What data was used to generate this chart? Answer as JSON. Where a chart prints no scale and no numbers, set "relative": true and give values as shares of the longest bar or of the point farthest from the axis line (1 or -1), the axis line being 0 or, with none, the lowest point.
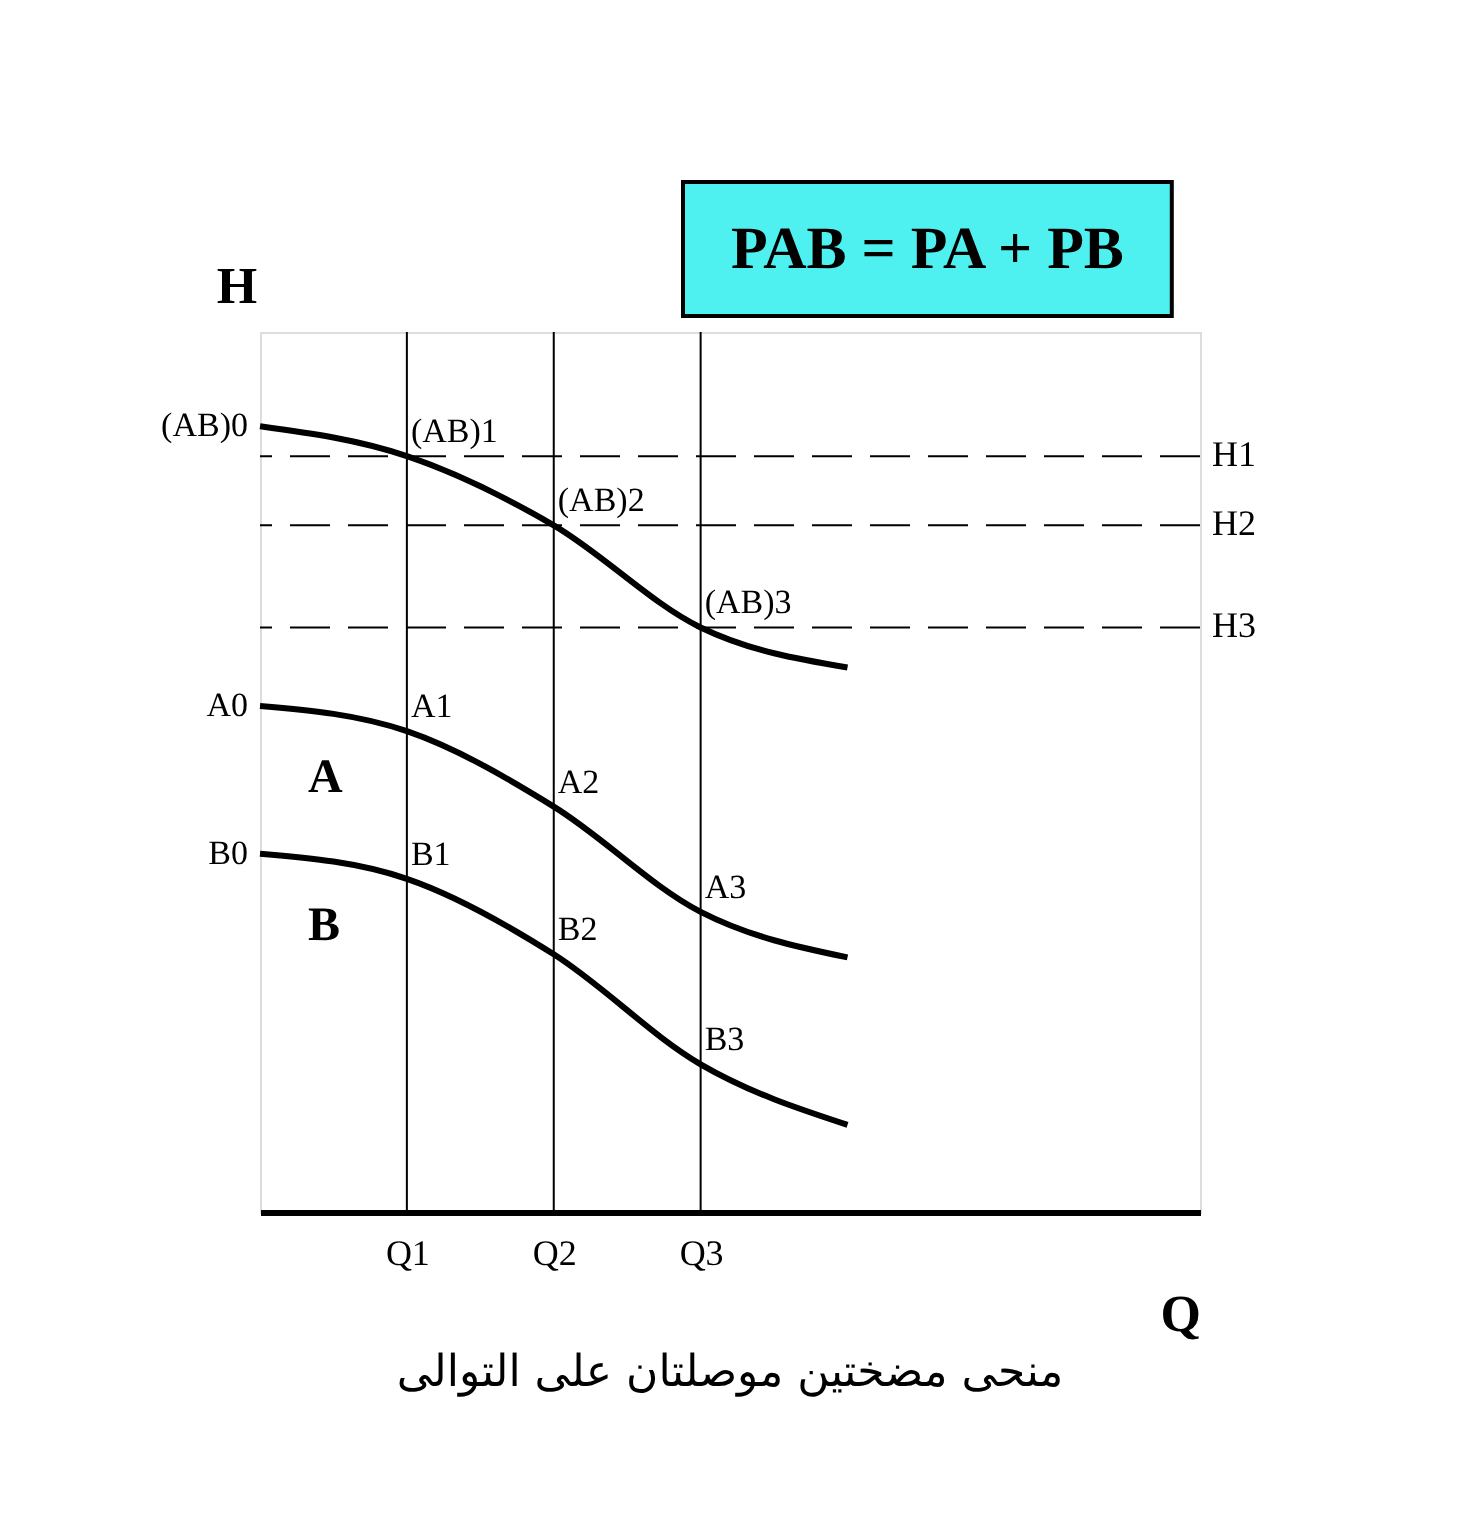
{
  "chart_data": {
    "type": "line",
    "relative": true,
    "title": "منحى مضختين موصلتان على التوالى",
    "xlabel": "Q",
    "ylabel": "H",
    "categories": [
      null,
      "Q1",
      "Q2",
      "Q3",
      null
    ],
    "series": [
      {
        "color": "#000000",
        "values": [
          1,
          0.962,
          0.874,
          0.744,
          0.693
        ]
      },
      {
        "name": "A",
        "color": "#000000",
        "values": [
          0.644,
          0.612,
          0.516,
          0.382,
          0.324
        ]
      },
      {
        "name": "B",
        "color": "#000000",
        "values": [
          0.456,
          0.424,
          0.328,
          0.188,
          0.111
        ]
      }
    ],
    "ref_lines": [
      {
        "axis": "y",
        "value": 0.962,
        "label": "H1",
        "line_style": "dashed"
      },
      {
        "axis": "y",
        "value": 0.874,
        "label": "H2",
        "line_style": "dashed"
      },
      {
        "axis": "y",
        "value": 0.744,
        "label": "H3",
        "line_style": "dashed"
      },
      {
        "axis": "x",
        "value": "Q1",
        "label": null
      },
      {
        "axis": "x",
        "value": "Q2",
        "label": null
      },
      {
        "axis": "x",
        "value": "Q3",
        "label": null
      }
    ],
    "annotations": [
      "PAB = PA + PB",
      "(AB)0",
      "A0",
      "B0",
      {
        "text": "(AB)1",
        "x": "Q1",
        "y": 0.962
      },
      {
        "text": "(AB)2",
        "x": "Q2",
        "y": 0.874
      },
      {
        "text": "(AB)3",
        "x": "Q3",
        "y": 0.744
      },
      {
        "text": "A1",
        "x": "Q1",
        "y": 0.612
      },
      {
        "text": "A2",
        "x": "Q2",
        "y": 0.516
      },
      {
        "text": "A3",
        "x": "Q3",
        "y": 0.382
      },
      {
        "text": "B1",
        "x": "Q1",
        "y": 0.424
      },
      {
        "text": "B2",
        "x": "Q2",
        "y": 0.328
      },
      {
        "text": "B3",
        "x": "Q3",
        "y": 0.188
      }
    ],
    "grid": false,
    "legend": false,
    "marker": "none",
    "line_style": "solid",
    "tick_labels": "x"
  }
}
